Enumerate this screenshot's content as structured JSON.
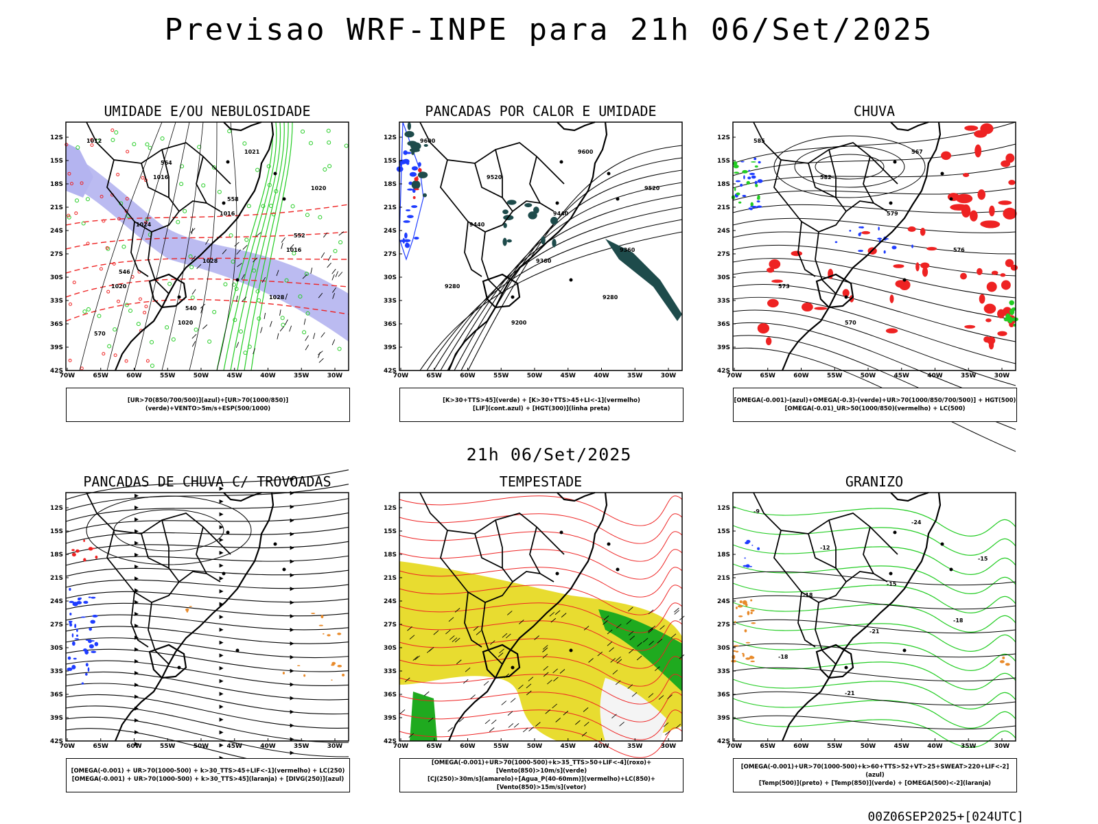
{
  "header": {
    "title": "Previsao WRF-INPE  para 21h 06/Set/2025",
    "mid_date": "21h 06/Set/2025",
    "run_id": "00Z06SEP2025+[024UTC]"
  },
  "axes": {
    "lat_labels": [
      "12S",
      "15S",
      "18S",
      "21S",
      "24S",
      "27S",
      "30S",
      "33S",
      "36S",
      "39S",
      "42S"
    ],
    "lon_labels": [
      "70W",
      "65W",
      "60W",
      "55W",
      "50W",
      "45W",
      "40W",
      "35W",
      "30W"
    ]
  },
  "panels": [
    {
      "id": "umidade",
      "title": "UMIDADE E/OU NEBULOSIDADE",
      "legend": [
        "[UR>70(850/700/500)](azul)+[UR>70(1000/850)](verde)+VENTO>5m/s+ESP(500/1000)"
      ],
      "contour_labels": [
        "1012",
        "1016",
        "1016",
        "1016",
        "1020",
        "1020",
        "1021",
        "1020",
        "1024",
        "1028",
        "1028",
        "570",
        "564",
        "558",
        "552",
        "546",
        "540"
      ]
    },
    {
      "id": "pancadas-calor",
      "title": "PANCADAS POR CALOR E UMIDADE",
      "legend": [
        "[K>30+TTS>45](verde)  +  [K>30+TTS>45+LI<-1](vermelho)",
        "[LIF](cont.azul)  +  [HGT(300)](linha preta)"
      ],
      "contour_labels": [
        "9600",
        "9520",
        "9440",
        "9360",
        "9280",
        "9200",
        "9600",
        "9520",
        "9440",
        "9360",
        "9280"
      ]
    },
    {
      "id": "chuva",
      "title": "CHUVA",
      "legend": [
        "[OMEGA(-0.001)-(azul)+OMEGA(-0.3)-(verde)+UR>70(1000/850/700/500)]  +  HGT(500)",
        "[OMEGA(-0.01)_UR>50(1000/850)(vermelho)  +  LC(500)"
      ],
      "contour_labels": [
        "585",
        "582",
        "579",
        "576",
        "573",
        "570",
        "567"
      ]
    },
    {
      "id": "trovoadas",
      "title": "PANCADAS DE CHUVA C/ TROVOADAS",
      "legend": [
        "[OMEGA(-0.001)  +  UR>70(1000-500)  +  k>30_TTS>45+LIF<-1](vermelho)  +  LC(250)",
        "[OMEGA(-0.001)  +  UR>70(1000-500)  +  k>30_TTS>45](laranja)  +  [DIVG(250)](azul)"
      ],
      "contour_labels": []
    },
    {
      "id": "tempestade",
      "title": "TEMPESTADE",
      "legend": [
        "[OMEGA(-0.001)+UR>70(1000-500)+k>35_TTS>50+LIF<-4](roxo)+[Vento(850)>10m/s](verde)",
        "[CJ(250)>30m/s](amarelo)+[Agua_P(40-60mm)](vermelho)+LC(850)+[Vento(850)>15m/s](vetor)"
      ],
      "contour_labels": []
    },
    {
      "id": "granizo",
      "title": "GRANIZO",
      "legend": [
        "[OMEGA(-0.001)+UR>70(1000-500)+k>60+TTS>52+VT>25+SWEAT>220+LIF<-2](azul)",
        "[Temp(500)](preto)  +  [Temp(850)](verde)  +  [OMEGA(500)<-2](laranja)"
      ],
      "contour_labels": [
        "-9",
        "-12",
        "-15",
        "-18",
        "-18",
        "-21",
        "-24",
        "-15",
        "-18",
        "-21"
      ]
    }
  ],
  "colors": {
    "blue_humidity": "#b4b4f0",
    "green": "#22cc22",
    "red": "#ee2222",
    "blue": "#1e3cff",
    "orange": "#e88a2a",
    "yellow": "#e8dc30",
    "teal": "#1e4b4b",
    "dark_green": "#1faa1f"
  }
}
